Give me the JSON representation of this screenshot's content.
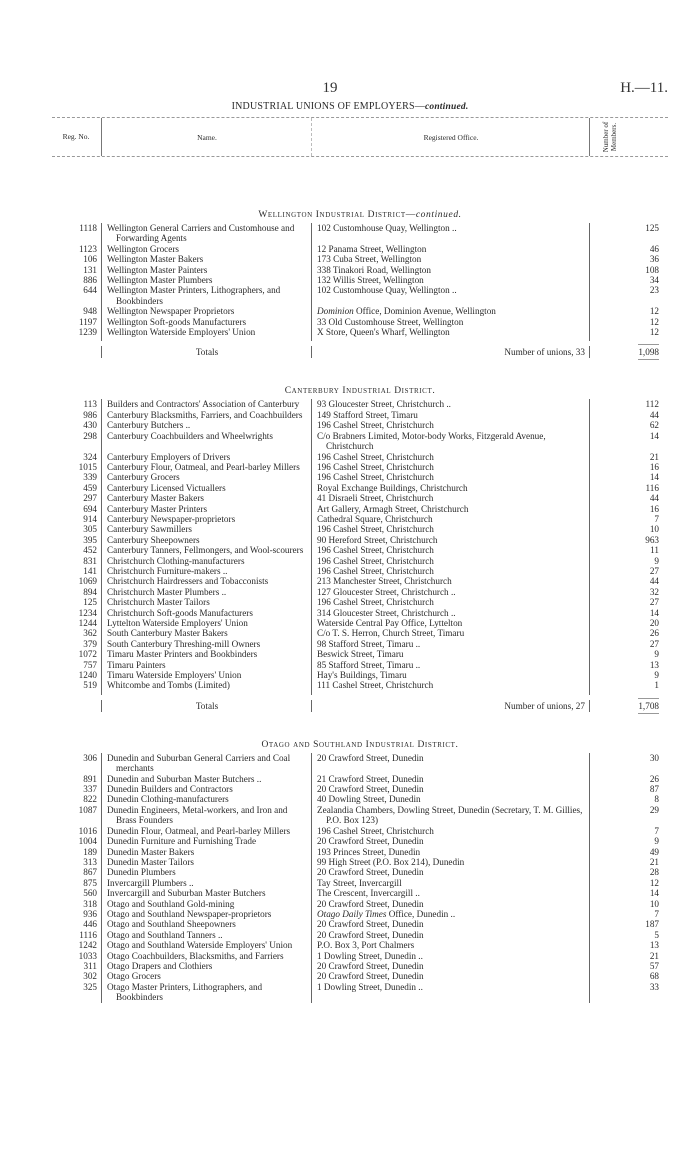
{
  "header": {
    "page_number": "19",
    "document_ref": "H.—11.",
    "title": "INDUSTRIAL UNIONS OF EMPLOYERS—",
    "title_suffix": "continued."
  },
  "columns": {
    "reg": "Reg. No.",
    "name": "Name.",
    "office": "Registered Office.",
    "members": "Number of Members."
  },
  "sections": [
    {
      "heading": "Wellington Industrial District—",
      "heading_suffix": "continued.",
      "rows": [
        {
          "reg": "1118",
          "name": "Wellington General Carriers and Customhouse and Forwarding Agents",
          "office": "102 Customhouse Quay, Wellington ..",
          "members": "125",
          "lines": 2
        },
        {
          "reg": "1123",
          "name": "Wellington Grocers",
          "office": "12 Panama Street, Wellington",
          "members": "46"
        },
        {
          "reg": "106",
          "name": "Wellington Master Bakers",
          "office": "173 Cuba Street, Wellington",
          "members": "36"
        },
        {
          "reg": "131",
          "name": "Wellington Master Painters",
          "office": "338 Tinakori Road, Wellington",
          "members": "108"
        },
        {
          "reg": "886",
          "name": "Wellington Master Plumbers",
          "office": "132 Willis Street, Wellington",
          "members": "34"
        },
        {
          "reg": "644",
          "name": "Wellington Master Printers, Lithographers, and Bookbinders",
          "office": "102 Customhouse Quay, Wellington ..",
          "members": "23",
          "lines": 2
        },
        {
          "reg": "948",
          "name": "Wellington Newspaper Proprietors",
          "office_em": "Dominion",
          "office": " Office, Dominion Avenue, Wellington",
          "members": "12"
        },
        {
          "reg": "1197",
          "name": "Wellington Soft-goods Manufacturers",
          "office": "33 Old Customhouse Street, Wellington",
          "members": "12"
        },
        {
          "reg": "1239",
          "name": "Wellington Waterside Employers' Union",
          "office": "X Store, Queen's Wharf, Wellington",
          "members": "12"
        }
      ],
      "totals_label": "Totals",
      "unions_label": "Number of unions, 33",
      "total_members": "1,098"
    },
    {
      "heading": "Canterbury Industrial District.",
      "heading_suffix": "",
      "rows": [
        {
          "reg": "113",
          "name": "Builders and Contractors' Association of Canterbury",
          "office": "93 Gloucester Street, Christchurch ..",
          "members": "112",
          "lines": 2
        },
        {
          "reg": "986",
          "name": "Canterbury Blacksmiths, Farriers, and Coachbuilders",
          "office": "149 Stafford Street, Timaru",
          "members": "44",
          "lines": 2
        },
        {
          "reg": "430",
          "name": "Canterbury Butchers ..",
          "office": "196 Cashel Street, Christchurch",
          "members": "62"
        },
        {
          "reg": "298",
          "name": "Canterbury Coachbuilders and Wheelwrights",
          "office": "C/o Brabners Limited, Motor-body Works, Fitzgerald Avenue, Christchurch",
          "members": "14",
          "lines": 2
        },
        {
          "reg": "324",
          "name": "Canterbury Employers of Drivers",
          "office": "196 Cashel Street, Christchurch",
          "members": "21"
        },
        {
          "reg": "1015",
          "name": "Canterbury Flour, Oatmeal, and Pearl-barley Millers",
          "office": "196 Cashel Street, Christchurch",
          "members": "16",
          "lines": 2
        },
        {
          "reg": "339",
          "name": "Canterbury Grocers",
          "office": "196 Cashel Street, Christchurch",
          "members": "14"
        },
        {
          "reg": "459",
          "name": "Canterbury Licensed Victuallers",
          "office": "Royal Exchange Buildings, Christchurch",
          "members": "116"
        },
        {
          "reg": "297",
          "name": "Canterbury Master Bakers",
          "office": "41 Disraeli Street, Christchurch",
          "members": "44"
        },
        {
          "reg": "694",
          "name": "Canterbury Master Printers",
          "office": "Art Gallery, Armagh Street, Christchurch",
          "members": "16"
        },
        {
          "reg": "914",
          "name": "Canterbury Newspaper-proprietors",
          "office": "Cathedral Square, Christchurch",
          "members": "7"
        },
        {
          "reg": "305",
          "name": "Canterbury Sawmillers",
          "office": "196 Cashel Street, Christchurch",
          "members": "10"
        },
        {
          "reg": "395",
          "name": "Canterbury Sheepowners",
          "office": "90 Hereford Street, Christchurch",
          "members": "963"
        },
        {
          "reg": "452",
          "name": "Canterbury Tanners, Fellmongers, and Wool-scourers",
          "office": "196 Cashel Street, Christchurch",
          "members": "11",
          "lines": 2
        },
        {
          "reg": "831",
          "name": "Christchurch Clothing-manufacturers",
          "office": "196 Cashel Street, Christchurch",
          "members": "9"
        },
        {
          "reg": "141",
          "name": "Christchurch Furniture-makers ..",
          "office": "196 Cashel Street, Christchurch",
          "members": "27"
        },
        {
          "reg": "1069",
          "name": "Christchurch Hairdressers and Tobacconists",
          "office": "213 Manchester Street, Christchurch",
          "members": "44"
        },
        {
          "reg": "894",
          "name": "Christchurch Master Plumbers ..",
          "office": "127 Gloucester Street, Christchurch ..",
          "members": "32"
        },
        {
          "reg": "125",
          "name": "Christchurch Master Tailors",
          "office": "196 Cashel Street, Christchurch",
          "members": "27"
        },
        {
          "reg": "1234",
          "name": "Christchurch Soft-goods Manufacturers",
          "office": "314 Gloucester Street, Christchurch ..",
          "members": "14"
        },
        {
          "reg": "1244",
          "name": "Lyttelton Waterside Employers' Union",
          "office": "Waterside Central Pay Office, Lyttelton",
          "members": "20"
        },
        {
          "reg": "362",
          "name": "South Canterbury Master Bakers",
          "office": "C/o T. S. Herron, Church Street, Timaru",
          "members": "26"
        },
        {
          "reg": "379",
          "name": "South Canterbury Threshing-mill Owners",
          "office": "98 Stafford Street, Timaru ..",
          "members": "27"
        },
        {
          "reg": "1072",
          "name": "Timaru Master Printers and Bookbinders",
          "office": "Beswick Street, Timaru",
          "members": "9"
        },
        {
          "reg": "757",
          "name": "Timaru Painters",
          "office": "85 Stafford Street, Timaru ..",
          "members": "13"
        },
        {
          "reg": "1240",
          "name": "Timaru Waterside Employers' Union",
          "office": "Hay's Buildings, Timaru",
          "members": "9"
        },
        {
          "reg": "519",
          "name": "Whitcombe and Tombs (Limited)",
          "office": "111 Cashel Street, Christchurch",
          "members": "1"
        }
      ],
      "totals_label": "Totals",
      "unions_label": "Number of unions, 27",
      "total_members": "1,708"
    },
    {
      "heading": "Otago and Southland Industrial District.",
      "heading_suffix": "",
      "rows": [
        {
          "reg": "306",
          "name": "Dunedin and Suburban General Carriers and Coal merchants",
          "office": "20 Crawford Street, Dunedin",
          "members": "30",
          "lines": 2
        },
        {
          "reg": "891",
          "name": "Dunedin and Suburban Master Butchers ..",
          "office": "21 Crawford Street, Dunedin",
          "members": "26"
        },
        {
          "reg": "337",
          "name": "Dunedin Builders and Contractors",
          "office": "20 Crawford Street, Dunedin",
          "members": "87"
        },
        {
          "reg": "822",
          "name": "Dunedin Clothing-manufacturers",
          "office": "40 Dowling Street, Dunedin",
          "members": "8"
        },
        {
          "reg": "1087",
          "name": "Dunedin Engineers, Metal-workers, and Iron and Brass Founders",
          "office": "Zealandia Chambers, Dowling Street, Dunedin (Secretary, T. M. Gillies, P.O. Box 123)",
          "members": "29",
          "lines": 2
        },
        {
          "reg": "1016",
          "name": "Dunedin Flour, Oatmeal, and Pearl-barley Millers",
          "office": "196 Cashel Street, Christchurch",
          "members": "7",
          "lines": 2
        },
        {
          "reg": "1004",
          "name": "Dunedin Furniture and Furnishing Trade",
          "office": "20 Crawford Street, Dunedin",
          "members": "9"
        },
        {
          "reg": "189",
          "name": "Dunedin Master Bakers",
          "office": "193 Princes Street, Dunedin",
          "members": "49"
        },
        {
          "reg": "313",
          "name": "Dunedin Master Tailors",
          "office": "99 High Street (P.O. Box 214), Dunedin",
          "members": "21"
        },
        {
          "reg": "867",
          "name": "Dunedin Plumbers",
          "office": "20 Crawford Street, Dunedin",
          "members": "28"
        },
        {
          "reg": "875",
          "name": "Invercargill Plumbers ..",
          "office": "Tay Street, Invercargill",
          "members": "12"
        },
        {
          "reg": "560",
          "name": "Invercargill and Suburban Master Butchers",
          "office": "The Crescent, Invercargill ..",
          "members": "14"
        },
        {
          "reg": "318",
          "name": "Otago and Southland Gold-mining",
          "office": "20 Crawford Street, Dunedin",
          "members": "10"
        },
        {
          "reg": "936",
          "name": "Otago and Southland Newspaper-proprietors",
          "office_em": "Otago Daily Times",
          "office": " Office, Dunedin ..",
          "members": "7"
        },
        {
          "reg": "446",
          "name": "Otago and Southland Sheepowners",
          "office": "20 Crawford Street, Dunedin",
          "members": "187"
        },
        {
          "reg": "1116",
          "name": "Otago and Southland Tanners ..",
          "office": "20 Crawford Street, Dunedin",
          "members": "5"
        },
        {
          "reg": "1242",
          "name": "Otago and Southland Waterside Employers' Union",
          "office": "P.O. Box 3, Port Chalmers",
          "members": "13",
          "lines": 2
        },
        {
          "reg": "1033",
          "name": "Otago Coachbuilders, Blacksmiths, and Farriers",
          "office": "1 Dowling Street, Dunedin ..",
          "members": "21",
          "lines": 2
        },
        {
          "reg": "311",
          "name": "Otago Drapers and Clothiers",
          "office": "20 Crawford Street, Dunedin",
          "members": "57"
        },
        {
          "reg": "302",
          "name": "Otago Grocers",
          "office": "20 Crawford Street, Dunedin",
          "members": "68"
        },
        {
          "reg": "325",
          "name": "Otago Master Printers, Lithographers, and Bookbinders",
          "office": "1 Dowling Street, Dunedin ..",
          "members": "33",
          "lines": 2
        }
      ]
    }
  ]
}
